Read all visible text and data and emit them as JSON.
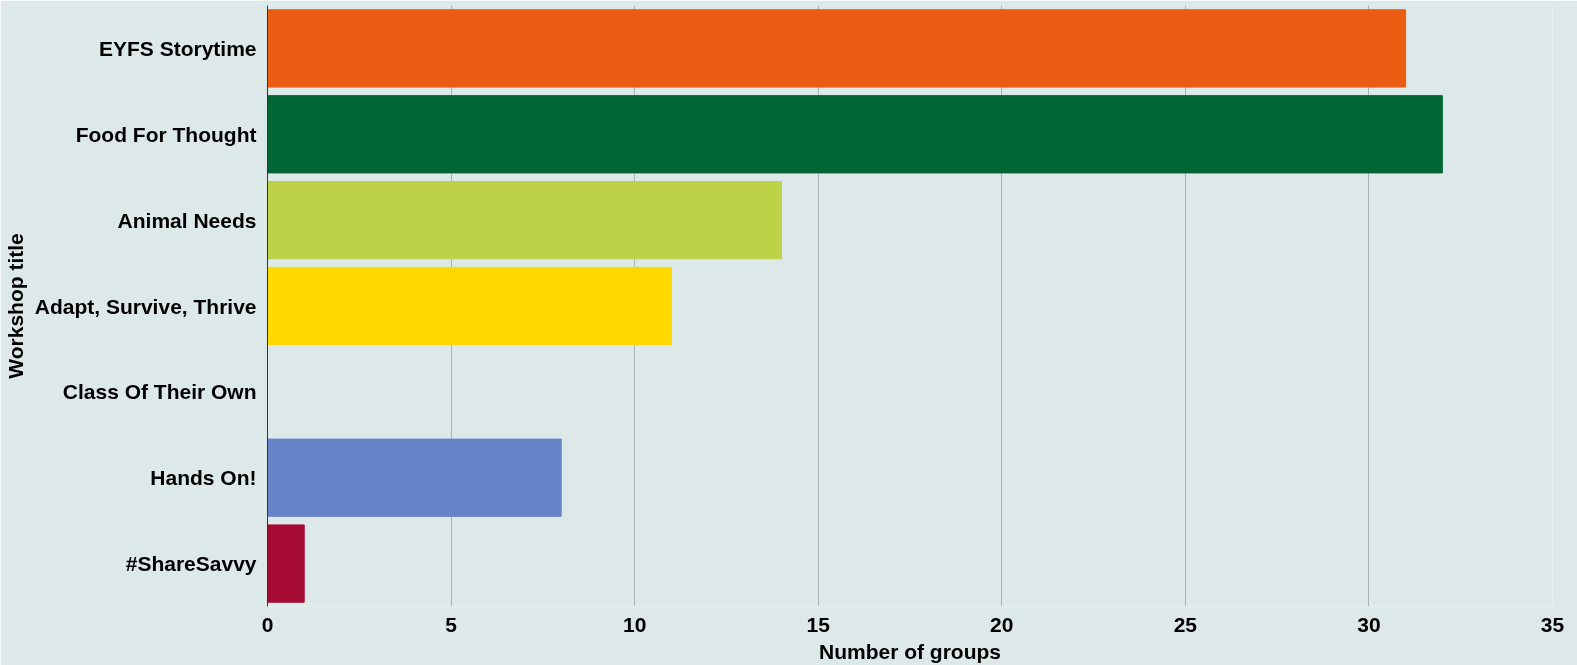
{
  "chart_data": {
    "type": "bar",
    "orientation": "horizontal",
    "xlabel": "Number of groups",
    "ylabel": "Workshop title",
    "categories": [
      "EYFS Storytime",
      "Food For Thought",
      "Animal Needs",
      "Adapt, Survive, Thrive",
      "Class Of Their Own",
      "Hands On!",
      "#ShareSavvy"
    ],
    "values": [
      31,
      32,
      14,
      11,
      0,
      8,
      1
    ],
    "colors": [
      "#eb5c13",
      "#006633",
      "#bdd246",
      "#ffd800",
      "#999999",
      "#6884c8",
      "#a50a33"
    ],
    "xlim": [
      0,
      35
    ],
    "xticks": [
      0,
      5,
      10,
      15,
      20,
      25,
      30,
      35
    ],
    "grid": "x"
  }
}
